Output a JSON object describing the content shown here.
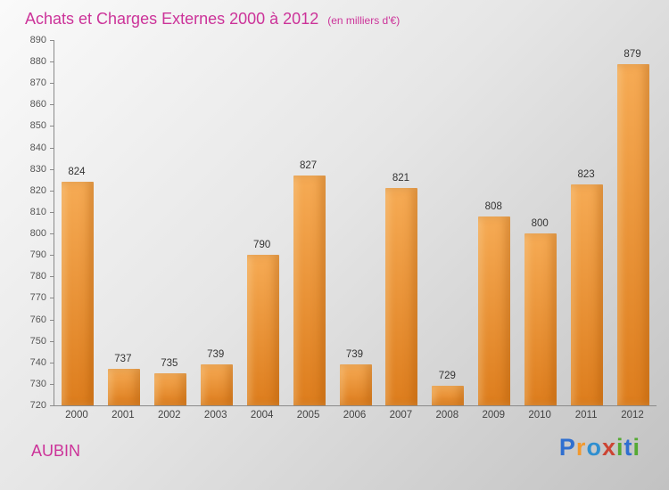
{
  "header": {
    "title": "Achats et Charges Externes 2000 à 2012",
    "subtitle": "(en milliers d'€)",
    "title_color": "#cc3399"
  },
  "chart_data": {
    "type": "bar",
    "title": "Achats et Charges Externes 2000 à 2012",
    "subtitle": "(en milliers d'€)",
    "categories": [
      "2000",
      "2001",
      "2002",
      "2003",
      "2004",
      "2005",
      "2006",
      "2007",
      "2008",
      "2009",
      "2010",
      "2011",
      "2012"
    ],
    "values": [
      824,
      737,
      735,
      739,
      790,
      827,
      739,
      821,
      729,
      808,
      800,
      823,
      879
    ],
    "xlabel": "",
    "ylabel": "",
    "ylim": [
      720,
      890
    ],
    "ytick_step": 10,
    "grid": false,
    "legend": "none",
    "bar_color_top": "#f6ab55",
    "bar_color_bottom": "#dd7d1d",
    "axis_color": "#8a8a8a",
    "value_label_color": "#333333"
  },
  "footer": {
    "brand": "AUBIN",
    "brand_color": "#cc3399",
    "logo_letters": [
      {
        "ch": "P",
        "color": "#2f6fd0"
      },
      {
        "ch": "r",
        "color": "#f2992e"
      },
      {
        "ch": "o",
        "color": "#2f8fd0"
      },
      {
        "ch": "x",
        "color": "#cc4433"
      },
      {
        "ch": "i",
        "color": "#55aa33"
      },
      {
        "ch": "t",
        "color": "#2f6fd0"
      },
      {
        "ch": "i",
        "color": "#55aa33"
      }
    ]
  }
}
